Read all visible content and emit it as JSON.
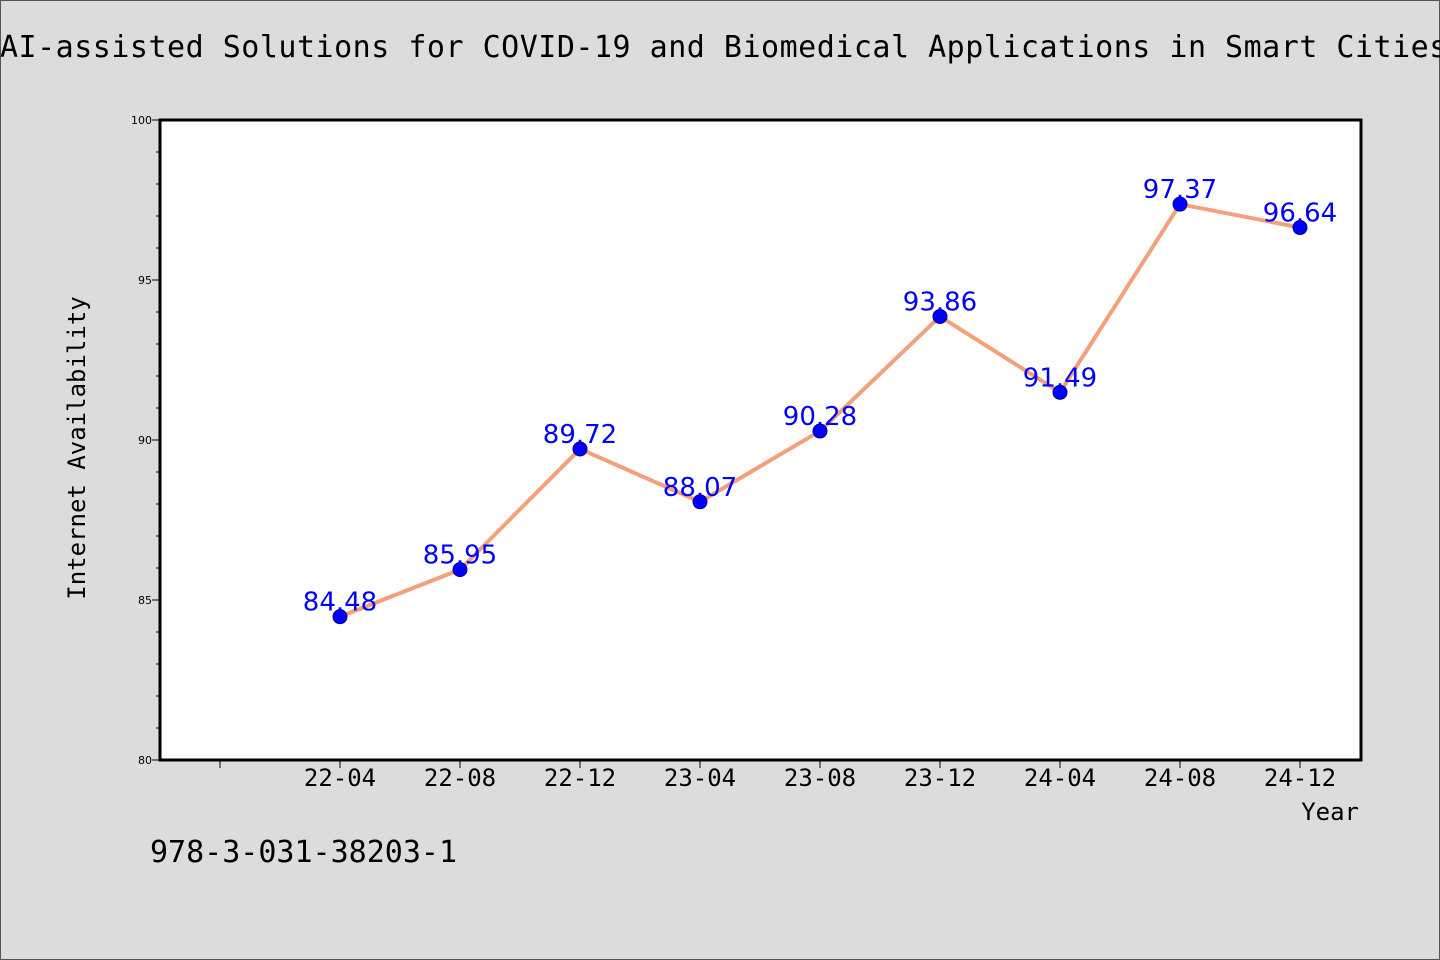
{
  "title": "AI-assisted Solutions for COVID-19 and Biomedical Applications in Smart Cities",
  "footer_text": "978-3-031-38203-1",
  "chart_data": {
    "type": "line",
    "title": "AI-assisted Solutions for COVID-19 and Biomedical Applications in Smart Cities",
    "xlabel": "Year",
    "ylabel": "Internet Availability",
    "categories": [
      "22-04",
      "22-08",
      "22-12",
      "23-04",
      "23-08",
      "23-12",
      "24-04",
      "24-08",
      "24-12"
    ],
    "values": [
      84.48,
      85.95,
      89.72,
      88.07,
      90.28,
      93.86,
      91.49,
      97.37,
      96.64
    ],
    "data_labels": [
      "84.48",
      "85.95",
      "89.72",
      "88.07",
      "90.28",
      "93.86",
      "91.49",
      "97.37",
      "96.64"
    ],
    "ylim": [
      80,
      100
    ],
    "yticks": [
      80,
      85,
      90,
      95,
      100
    ],
    "grid": false,
    "line_color": "#f4a07a",
    "marker_color": "#0000ff",
    "label_color": "#0000ff"
  }
}
